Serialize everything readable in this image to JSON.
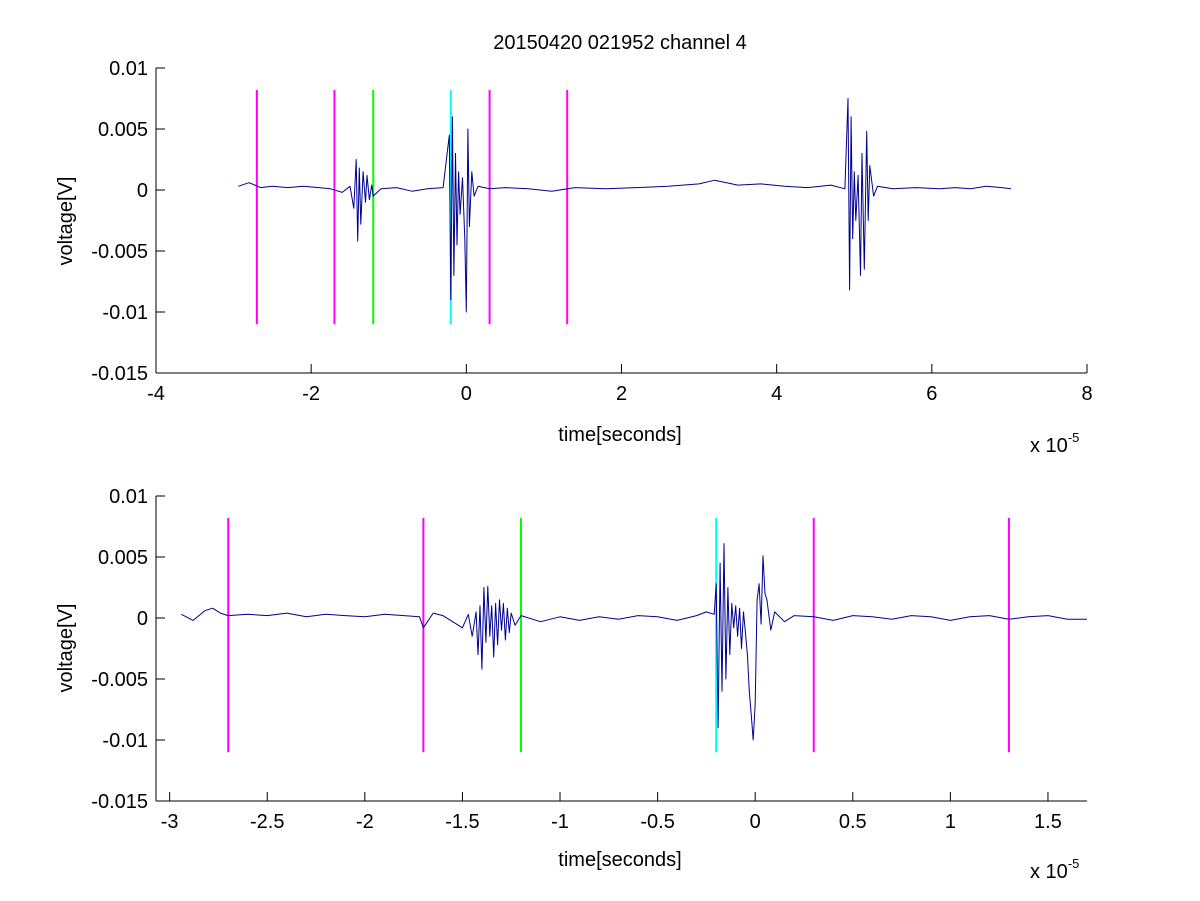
{
  "title": "20150420 021952 channel 4",
  "colors": {
    "signal": "#00008f",
    "marker_magenta": "#ff00ff",
    "marker_green": "#00ff00",
    "marker_cyan": "#00ffff",
    "axes": "#000000"
  },
  "chart_data": [
    {
      "type": "line",
      "title": "20150420 021952 channel 4",
      "xlabel": "time[seconds]",
      "ylabel": "voltage[V]",
      "x_exponent_label": {
        "base": "x 10",
        "exponent": "-5"
      },
      "xlim": [
        -4,
        8
      ],
      "ylim": [
        -0.015,
        0.01
      ],
      "x_ticks": [
        -4,
        -2,
        0,
        2,
        4,
        6,
        8
      ],
      "x_tick_labels": [
        "-4",
        "-2",
        "0",
        "2",
        "4",
        "6",
        "8"
      ],
      "y_ticks": [
        0.01,
        0.005,
        0,
        -0.005,
        -0.01,
        -0.015
      ],
      "y_tick_labels": [
        "0.01",
        "0.005",
        "0",
        "-0.005",
        "-0.01",
        "-0.015"
      ],
      "grid": false,
      "legend": "none",
      "series": [
        {
          "x": [
            -2.94,
            -2.8,
            -2.65,
            -2.5,
            -2.3,
            -2.1,
            -1.9,
            -1.75,
            -1.6,
            -1.5,
            -1.45,
            -1.42,
            -1.4,
            -1.38,
            -1.36,
            -1.33,
            -1.3,
            -1.28,
            -1.25,
            -1.22,
            -1.2,
            -1.1,
            -0.9,
            -0.7,
            -0.5,
            -0.3,
            -0.22,
            -0.2,
            -0.18,
            -0.16,
            -0.14,
            -0.12,
            -0.1,
            -0.08,
            -0.05,
            -0.02,
            0,
            0.02,
            0.04,
            0.07,
            0.1,
            0.15,
            0.3,
            0.5,
            0.8,
            1.1,
            1.4,
            1.8,
            2.2,
            2.6,
            3.0,
            3.2,
            3.5,
            3.8,
            4.1,
            4.4,
            4.7,
            4.88,
            4.92,
            4.94,
            4.96,
            4.98,
            5.0,
            5.02,
            5.05,
            5.08,
            5.1,
            5.13,
            5.16,
            5.18,
            5.2,
            5.25,
            5.3,
            5.5,
            5.8,
            6.1,
            6.3,
            6.5,
            6.7,
            6.9,
            7.02
          ],
          "y": [
            0.0003,
            0.0006,
            0.0002,
            0.0003,
            0.0002,
            0.0003,
            0.0002,
            0.0001,
            -0.0002,
            0.0003,
            -0.0015,
            0.0025,
            -0.0042,
            0.0018,
            -0.0028,
            0.0015,
            -0.001,
            0.0012,
            -0.0008,
            0.0004,
            -0.0005,
            0.0001,
            0.0002,
            -0.0001,
            0.0001,
            0.0002,
            0.0045,
            -0.009,
            0.006,
            -0.007,
            0.003,
            -0.0045,
            0.0015,
            -0.002,
            0.001,
            -0.004,
            -0.01,
            0.005,
            -0.003,
            0.0015,
            -0.0005,
            0.0003,
            0.0001,
            0.0002,
            0.0001,
            -0.0001,
            0.0002,
            0.0001,
            0.0002,
            0.0003,
            0.0005,
            0.0008,
            0.0004,
            0.0005,
            0.0003,
            0.0002,
            0.0004,
            0.0001,
            0.0075,
            -0.0082,
            0.006,
            -0.004,
            0.0015,
            -0.0025,
            0.0012,
            -0.007,
            0.003,
            -0.0065,
            0.0048,
            -0.0025,
            0.002,
            -0.0005,
            0.0003,
            0.0001,
            0.0002,
            0.0001,
            0.0002,
            0.0001,
            0.0003,
            0.0002,
            0.0001
          ]
        }
      ],
      "vertical_markers": [
        {
          "x": -2.7,
          "y": [
            -0.011,
            0.0082
          ],
          "color": "magenta"
        },
        {
          "x": -1.7,
          "y": [
            -0.011,
            0.0082
          ],
          "color": "magenta"
        },
        {
          "x": -1.2,
          "y": [
            -0.011,
            0.0082
          ],
          "color": "green"
        },
        {
          "x": -0.2,
          "y": [
            -0.011,
            0.0082
          ],
          "color": "cyan"
        },
        {
          "x": 0.3,
          "y": [
            -0.011,
            0.0082
          ],
          "color": "magenta"
        },
        {
          "x": 1.3,
          "y": [
            -0.011,
            0.0082
          ],
          "color": "magenta"
        }
      ]
    },
    {
      "type": "line",
      "title": "",
      "xlabel": "time[seconds]",
      "ylabel": "voltage[V]",
      "x_exponent_label": {
        "base": "x 10",
        "exponent": "-5"
      },
      "xlim": [
        -3.07,
        1.7
      ],
      "ylim": [
        -0.015,
        0.01
      ],
      "x_ticks": [
        -3,
        -2.5,
        -2,
        -1.5,
        -1,
        -0.5,
        0,
        0.5,
        1,
        1.5
      ],
      "x_tick_labels": [
        "-3",
        "-2.5",
        "-2",
        "-1.5",
        "-1",
        "-0.5",
        "0",
        "0.5",
        "1",
        "1.5"
      ],
      "y_ticks": [
        0.01,
        0.005,
        0,
        -0.005,
        -0.01,
        -0.015
      ],
      "y_tick_labels": [
        "0.01",
        "0.005",
        "0",
        "-0.005",
        "-0.01",
        "-0.015"
      ],
      "grid": false,
      "legend": "none",
      "series": [
        {
          "x": [
            -2.94,
            -2.88,
            -2.82,
            -2.78,
            -2.74,
            -2.7,
            -2.6,
            -2.5,
            -2.4,
            -2.3,
            -2.2,
            -2.1,
            -2.0,
            -1.9,
            -1.8,
            -1.72,
            -1.7,
            -1.65,
            -1.6,
            -1.55,
            -1.5,
            -1.47,
            -1.45,
            -1.43,
            -1.42,
            -1.41,
            -1.4,
            -1.39,
            -1.38,
            -1.37,
            -1.36,
            -1.35,
            -1.34,
            -1.33,
            -1.32,
            -1.31,
            -1.3,
            -1.29,
            -1.28,
            -1.27,
            -1.26,
            -1.25,
            -1.23,
            -1.2,
            -1.1,
            -1.0,
            -0.9,
            -0.8,
            -0.7,
            -0.6,
            -0.5,
            -0.4,
            -0.3,
            -0.25,
            -0.21,
            -0.2,
            -0.19,
            -0.18,
            -0.17,
            -0.16,
            -0.15,
            -0.14,
            -0.13,
            -0.12,
            -0.11,
            -0.1,
            -0.09,
            -0.08,
            -0.07,
            -0.06,
            -0.05,
            -0.04,
            -0.03,
            -0.02,
            -0.01,
            0.0,
            0.01,
            0.02,
            0.03,
            0.04,
            0.05,
            0.06,
            0.08,
            0.1,
            0.15,
            0.2,
            0.3,
            0.4,
            0.5,
            0.6,
            0.7,
            0.8,
            0.9,
            1.0,
            1.1,
            1.2,
            1.3,
            1.4,
            1.5,
            1.6,
            1.7
          ],
          "y": [
            0.0003,
            -0.0002,
            0.0006,
            0.0008,
            0.0004,
            0.0002,
            0.0003,
            0.0002,
            0.0004,
            0.0001,
            0.0003,
            0.0002,
            0.0001,
            0.0003,
            0.0002,
            0.0001,
            -0.0008,
            0.0004,
            0.0002,
            -0.0003,
            -0.0008,
            0.0003,
            -0.0015,
            0.0005,
            -0.003,
            0.001,
            -0.0042,
            0.0025,
            -0.002,
            0.0026,
            -0.0015,
            0.001,
            -0.0032,
            0.0012,
            -0.0022,
            0.0015,
            -0.001,
            0.0012,
            -0.0018,
            0.0008,
            -0.0012,
            0.0004,
            -0.0006,
            0.0002,
            -0.0003,
            0.0001,
            -0.0002,
            0.0001,
            -0.0001,
            0.0002,
            0.0001,
            -0.0002,
            0.0002,
            0.0005,
            0.0003,
            0.0028,
            -0.009,
            0.0045,
            -0.006,
            0.0061,
            -0.005,
            0.0025,
            -0.003,
            0.0012,
            -0.0008,
            0.001,
            -0.0015,
            0.0008,
            -0.0025,
            0.0005,
            -0.0012,
            -0.003,
            -0.006,
            -0.008,
            -0.01,
            -0.007,
            0.0015,
            0.0028,
            -0.0005,
            0.0051,
            0.002,
            0.0015,
            -0.001,
            0.0005,
            -0.0003,
            0.0002,
            0.0001,
            -0.0002,
            0.0002,
            0.0001,
            -0.0001,
            0.0002,
            0.0001,
            -0.0002,
            0.0001,
            0.0002,
            -0.0001,
            0.0001,
            0.0002,
            -0.0001,
            -0.0001
          ]
        }
      ],
      "vertical_markers": [
        {
          "x": -2.7,
          "y": [
            -0.011,
            0.0082
          ],
          "color": "magenta"
        },
        {
          "x": -1.7,
          "y": [
            -0.011,
            0.0082
          ],
          "color": "magenta"
        },
        {
          "x": -1.2,
          "y": [
            -0.011,
            0.0082
          ],
          "color": "green"
        },
        {
          "x": -0.2,
          "y": [
            -0.011,
            0.0082
          ],
          "color": "cyan"
        },
        {
          "x": 0.3,
          "y": [
            -0.011,
            0.0082
          ],
          "color": "magenta"
        },
        {
          "x": 1.3,
          "y": [
            -0.011,
            0.0082
          ],
          "color": "magenta"
        }
      ]
    }
  ]
}
